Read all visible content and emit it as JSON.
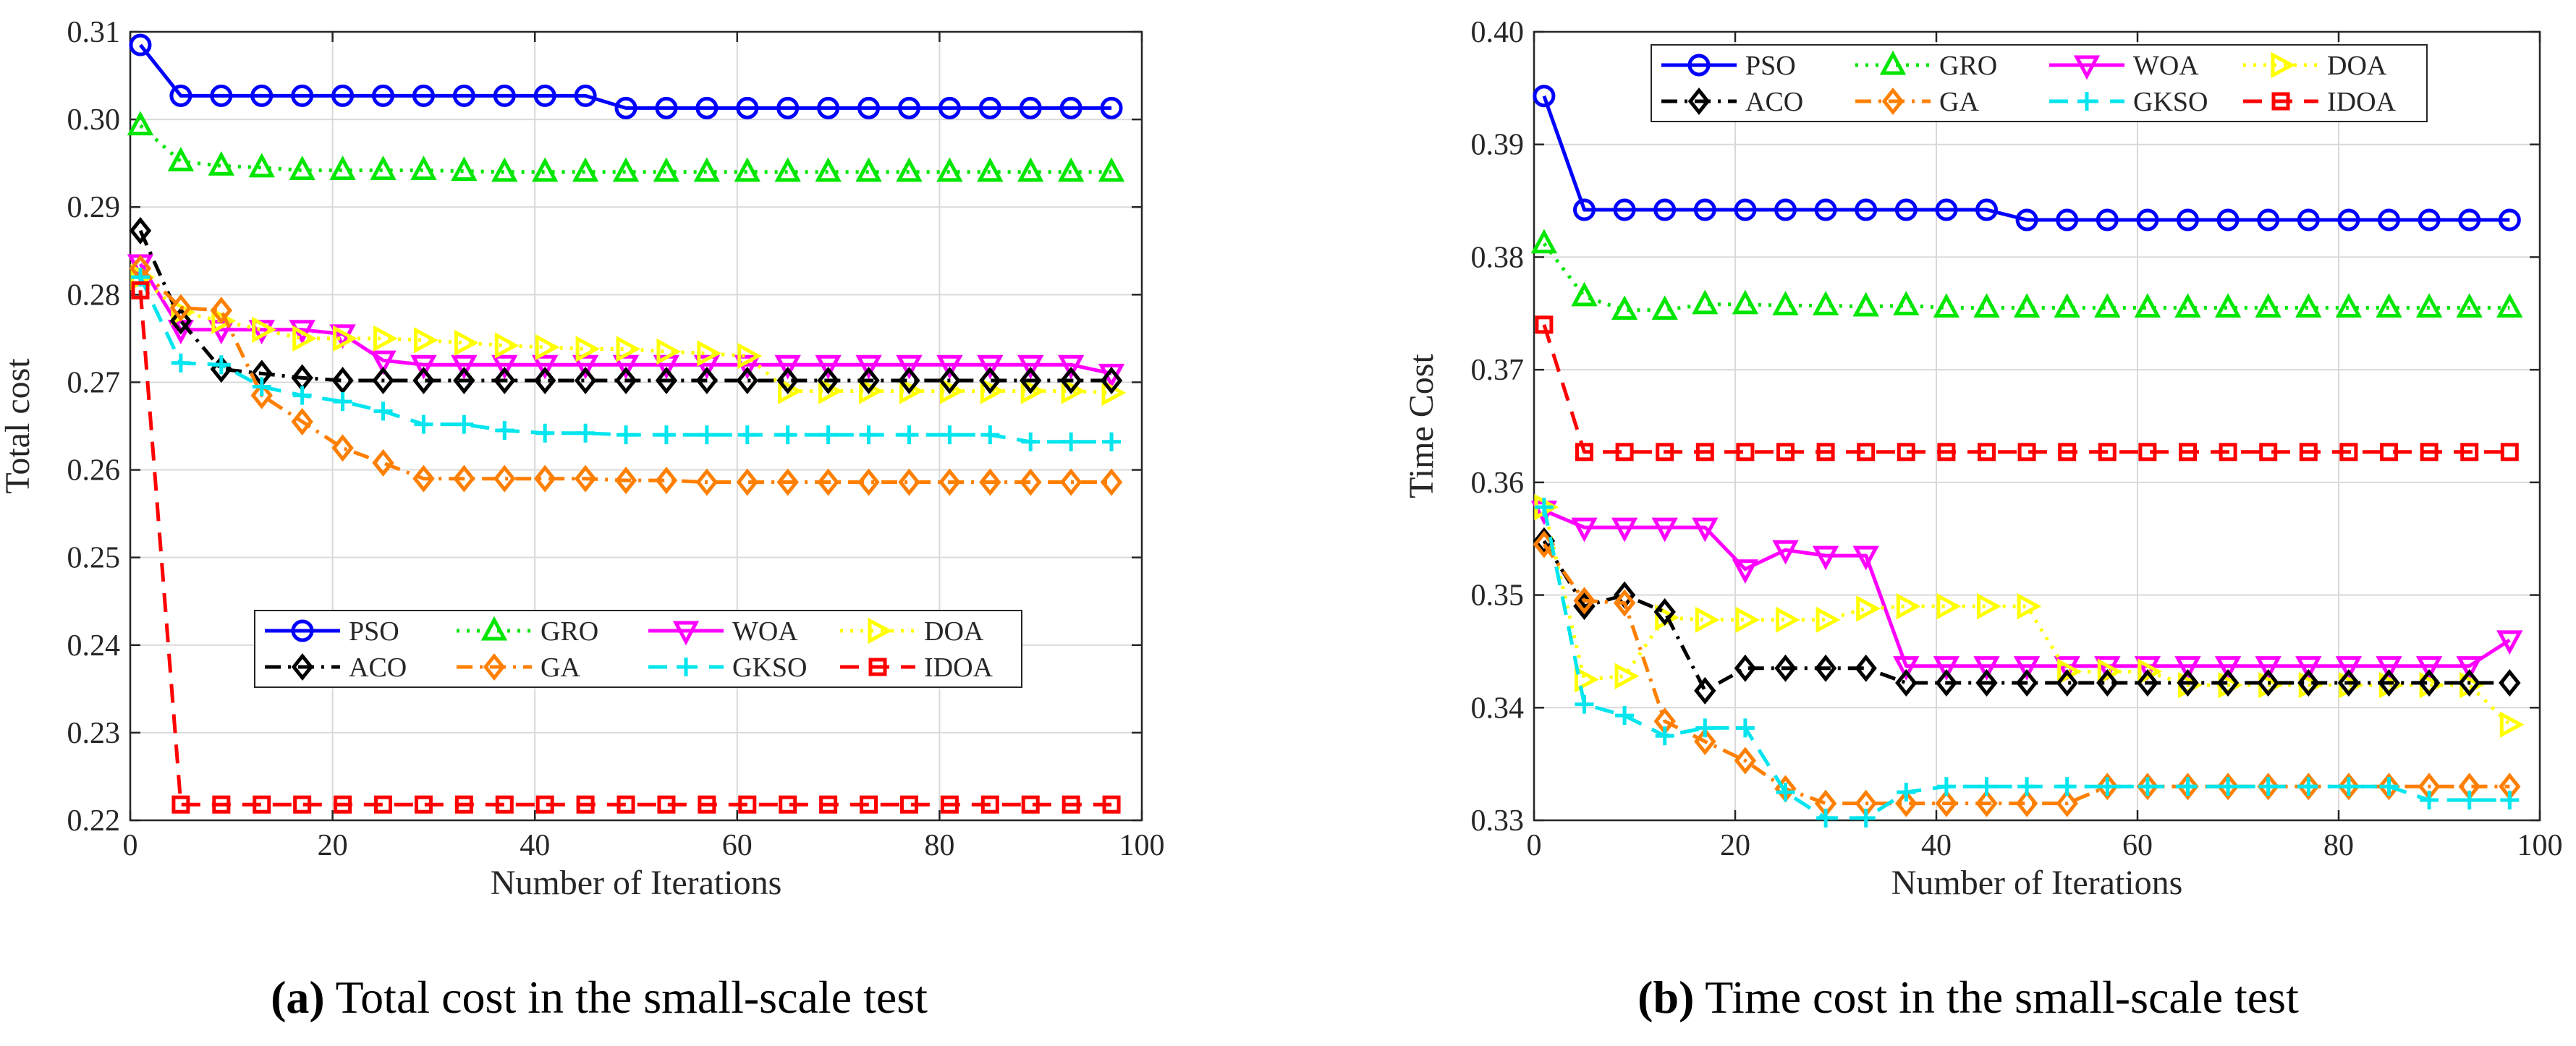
{
  "captions": [
    {
      "letter": "(a)",
      "text": " Total cost in the small-scale test"
    },
    {
      "letter": "(b)",
      "text": " Time cost in the small-scale test"
    }
  ],
  "colors": {
    "PSO": "#0000ff",
    "GRO": "#00e600",
    "WOA": "#ff00ff",
    "DOA": "#ffff00",
    "ACO": "#000000",
    "GA": "#ff7f00",
    "GKSO": "#00e5ee",
    "IDOA": "#ff0000"
  },
  "chart_data": [
    {
      "type": "line",
      "title": "",
      "xlabel": "Number of Iterations",
      "ylabel": "Total cost",
      "xlim": [
        0,
        100
      ],
      "ylim": [
        0.22,
        0.31
      ],
      "xticks": [
        "0",
        "20",
        "40",
        "60",
        "80",
        "100"
      ],
      "yticks": [
        "0.22",
        "0.23",
        "0.24",
        "0.25",
        "0.26",
        "0.27",
        "0.28",
        "0.29",
        "0.30",
        "0.31"
      ],
      "legend_position": "lower-center",
      "legend_order": [
        "PSO",
        "GRO",
        "WOA",
        "DOA",
        "ACO",
        "GA",
        "GKSO",
        "IDOA"
      ],
      "x": [
        1,
        5,
        9,
        13,
        17,
        21,
        25,
        29,
        33,
        37,
        41,
        45,
        49,
        53,
        57,
        61,
        65,
        69,
        73,
        77,
        81,
        85,
        89,
        93,
        97
      ],
      "series": [
        {
          "name": "PSO",
          "values": [
            0.3085,
            0.3027,
            0.3027,
            0.3027,
            0.3027,
            0.3027,
            0.3027,
            0.3027,
            0.3027,
            0.3027,
            0.3027,
            0.3027,
            0.3013,
            0.3013,
            0.3013,
            0.3013,
            0.3013,
            0.3013,
            0.3013,
            0.3013,
            0.3013,
            0.3013,
            0.3013,
            0.3013,
            0.3013
          ]
        },
        {
          "name": "GRO",
          "values": [
            0.2993,
            0.2952,
            0.2947,
            0.2945,
            0.2942,
            0.2942,
            0.2942,
            0.2942,
            0.2941,
            0.294,
            0.294,
            0.294,
            0.294,
            0.294,
            0.294,
            0.294,
            0.294,
            0.294,
            0.294,
            0.294,
            0.294,
            0.294,
            0.294,
            0.294,
            0.294
          ]
        },
        {
          "name": "WOA",
          "values": [
            0.2835,
            0.276,
            0.276,
            0.276,
            0.276,
            0.2755,
            0.2725,
            0.272,
            0.272,
            0.272,
            0.272,
            0.272,
            0.272,
            0.272,
            0.272,
            0.272,
            0.272,
            0.272,
            0.272,
            0.272,
            0.272,
            0.272,
            0.272,
            0.272,
            0.271
          ]
        },
        {
          "name": "DOA",
          "values": [
            0.282,
            0.278,
            0.277,
            0.276,
            0.275,
            0.275,
            0.275,
            0.2748,
            0.2745,
            0.2742,
            0.274,
            0.2738,
            0.2738,
            0.2735,
            0.2733,
            0.273,
            0.269,
            0.269,
            0.269,
            0.269,
            0.269,
            0.269,
            0.269,
            0.269,
            0.2688
          ]
        },
        {
          "name": "ACO",
          "values": [
            0.2873,
            0.277,
            0.2715,
            0.271,
            0.2705,
            0.2702,
            0.2702,
            0.2702,
            0.2702,
            0.2702,
            0.2702,
            0.2702,
            0.2702,
            0.2702,
            0.2702,
            0.2702,
            0.2702,
            0.2702,
            0.2702,
            0.2702,
            0.2702,
            0.2702,
            0.2702,
            0.2702,
            0.2702
          ]
        },
        {
          "name": "GA",
          "values": [
            0.283,
            0.2785,
            0.2782,
            0.2685,
            0.2655,
            0.2625,
            0.2608,
            0.259,
            0.259,
            0.259,
            0.259,
            0.259,
            0.2588,
            0.2588,
            0.2586,
            0.2586,
            0.2586,
            0.2586,
            0.2586,
            0.2586,
            0.2586,
            0.2586,
            0.2586,
            0.2586,
            0.2586
          ]
        },
        {
          "name": "GKSO",
          "values": [
            0.282,
            0.2722,
            0.272,
            0.2695,
            0.2685,
            0.2678,
            0.2667,
            0.2652,
            0.2652,
            0.2645,
            0.2642,
            0.2642,
            0.264,
            0.264,
            0.264,
            0.264,
            0.264,
            0.264,
            0.264,
            0.264,
            0.264,
            0.264,
            0.2632,
            0.2632,
            0.2632
          ]
        },
        {
          "name": "IDOA",
          "values": [
            0.2805,
            0.2218,
            0.2218,
            0.2218,
            0.2218,
            0.2218,
            0.2218,
            0.2218,
            0.2218,
            0.2218,
            0.2218,
            0.2218,
            0.2218,
            0.2218,
            0.2218,
            0.2218,
            0.2218,
            0.2218,
            0.2218,
            0.2218,
            0.2218,
            0.2218,
            0.2218,
            0.2218,
            0.2218
          ]
        }
      ]
    },
    {
      "type": "line",
      "title": "",
      "xlabel": "Number of Iterations",
      "ylabel": "Time Cost",
      "xlim": [
        0,
        100
      ],
      "ylim": [
        0.33,
        0.4
      ],
      "xticks": [
        "0",
        "20",
        "40",
        "60",
        "80",
        "100"
      ],
      "yticks": [
        "0.33",
        "0.34",
        "0.35",
        "0.36",
        "0.37",
        "0.38",
        "0.39",
        "0.40"
      ],
      "legend_position": "top-left",
      "legend_order": [
        "PSO",
        "GRO",
        "WOA",
        "DOA",
        "ACO",
        "GA",
        "GKSO",
        "IDOA"
      ],
      "x": [
        1,
        5,
        9,
        13,
        17,
        21,
        25,
        29,
        33,
        37,
        41,
        45,
        49,
        53,
        57,
        61,
        65,
        69,
        73,
        77,
        81,
        85,
        89,
        93,
        97
      ],
      "series": [
        {
          "name": "PSO",
          "values": [
            0.3943,
            0.3842,
            0.3842,
            0.3842,
            0.3842,
            0.3842,
            0.3842,
            0.3842,
            0.3842,
            0.3842,
            0.3842,
            0.3842,
            0.3833,
            0.3833,
            0.3833,
            0.3833,
            0.3833,
            0.3833,
            0.3833,
            0.3833,
            0.3833,
            0.3833,
            0.3833,
            0.3833,
            0.3833
          ]
        },
        {
          "name": "GRO",
          "values": [
            0.3812,
            0.3765,
            0.3753,
            0.3753,
            0.3758,
            0.3758,
            0.3757,
            0.3757,
            0.3756,
            0.3757,
            0.3755,
            0.3755,
            0.3755,
            0.3755,
            0.3755,
            0.3755,
            0.3755,
            0.3755,
            0.3755,
            0.3755,
            0.3755,
            0.3755,
            0.3755,
            0.3755,
            0.3755
          ]
        },
        {
          "name": "WOA",
          "values": [
            0.3575,
            0.356,
            0.356,
            0.356,
            0.356,
            0.3523,
            0.354,
            0.3535,
            0.3535,
            0.3437,
            0.3437,
            0.3437,
            0.3437,
            0.3437,
            0.3437,
            0.3437,
            0.3437,
            0.3437,
            0.3437,
            0.3437,
            0.3437,
            0.3437,
            0.3437,
            0.3437,
            0.346
          ]
        },
        {
          "name": "DOA",
          "values": [
            0.3578,
            0.3425,
            0.3428,
            0.348,
            0.3478,
            0.3478,
            0.3478,
            0.3478,
            0.3488,
            0.349,
            0.349,
            0.349,
            0.349,
            0.3432,
            0.3432,
            0.3432,
            0.342,
            0.342,
            0.342,
            0.342,
            0.342,
            0.342,
            0.342,
            0.342,
            0.3385
          ]
        },
        {
          "name": "ACO",
          "values": [
            0.3548,
            0.349,
            0.35,
            0.3485,
            0.3415,
            0.3435,
            0.3435,
            0.3435,
            0.3435,
            0.3422,
            0.3422,
            0.3422,
            0.3422,
            0.3422,
            0.3422,
            0.3422,
            0.3422,
            0.3422,
            0.3422,
            0.3422,
            0.3422,
            0.3422,
            0.3422,
            0.3422,
            0.3422
          ]
        },
        {
          "name": "GA",
          "values": [
            0.3545,
            0.3495,
            0.3493,
            0.3388,
            0.337,
            0.3353,
            0.3328,
            0.3315,
            0.3315,
            0.3315,
            0.3315,
            0.3315,
            0.3315,
            0.3315,
            0.333,
            0.333,
            0.333,
            0.333,
            0.333,
            0.333,
            0.333,
            0.333,
            0.333,
            0.333,
            0.333
          ]
        },
        {
          "name": "GKSO",
          "values": [
            0.3578,
            0.3403,
            0.3393,
            0.3375,
            0.3382,
            0.3382,
            0.3325,
            0.3302,
            0.3302,
            0.3325,
            0.333,
            0.333,
            0.333,
            0.333,
            0.333,
            0.333,
            0.333,
            0.333,
            0.333,
            0.333,
            0.333,
            0.333,
            0.3318,
            0.3318,
            0.3318
          ]
        },
        {
          "name": "IDOA",
          "values": [
            0.374,
            0.3627,
            0.3627,
            0.3627,
            0.3627,
            0.3627,
            0.3627,
            0.3627,
            0.3627,
            0.3627,
            0.3627,
            0.3627,
            0.3627,
            0.3627,
            0.3627,
            0.3627,
            0.3627,
            0.3627,
            0.3627,
            0.3627,
            0.3627,
            0.3627,
            0.3627,
            0.3627,
            0.3627
          ]
        }
      ]
    }
  ]
}
